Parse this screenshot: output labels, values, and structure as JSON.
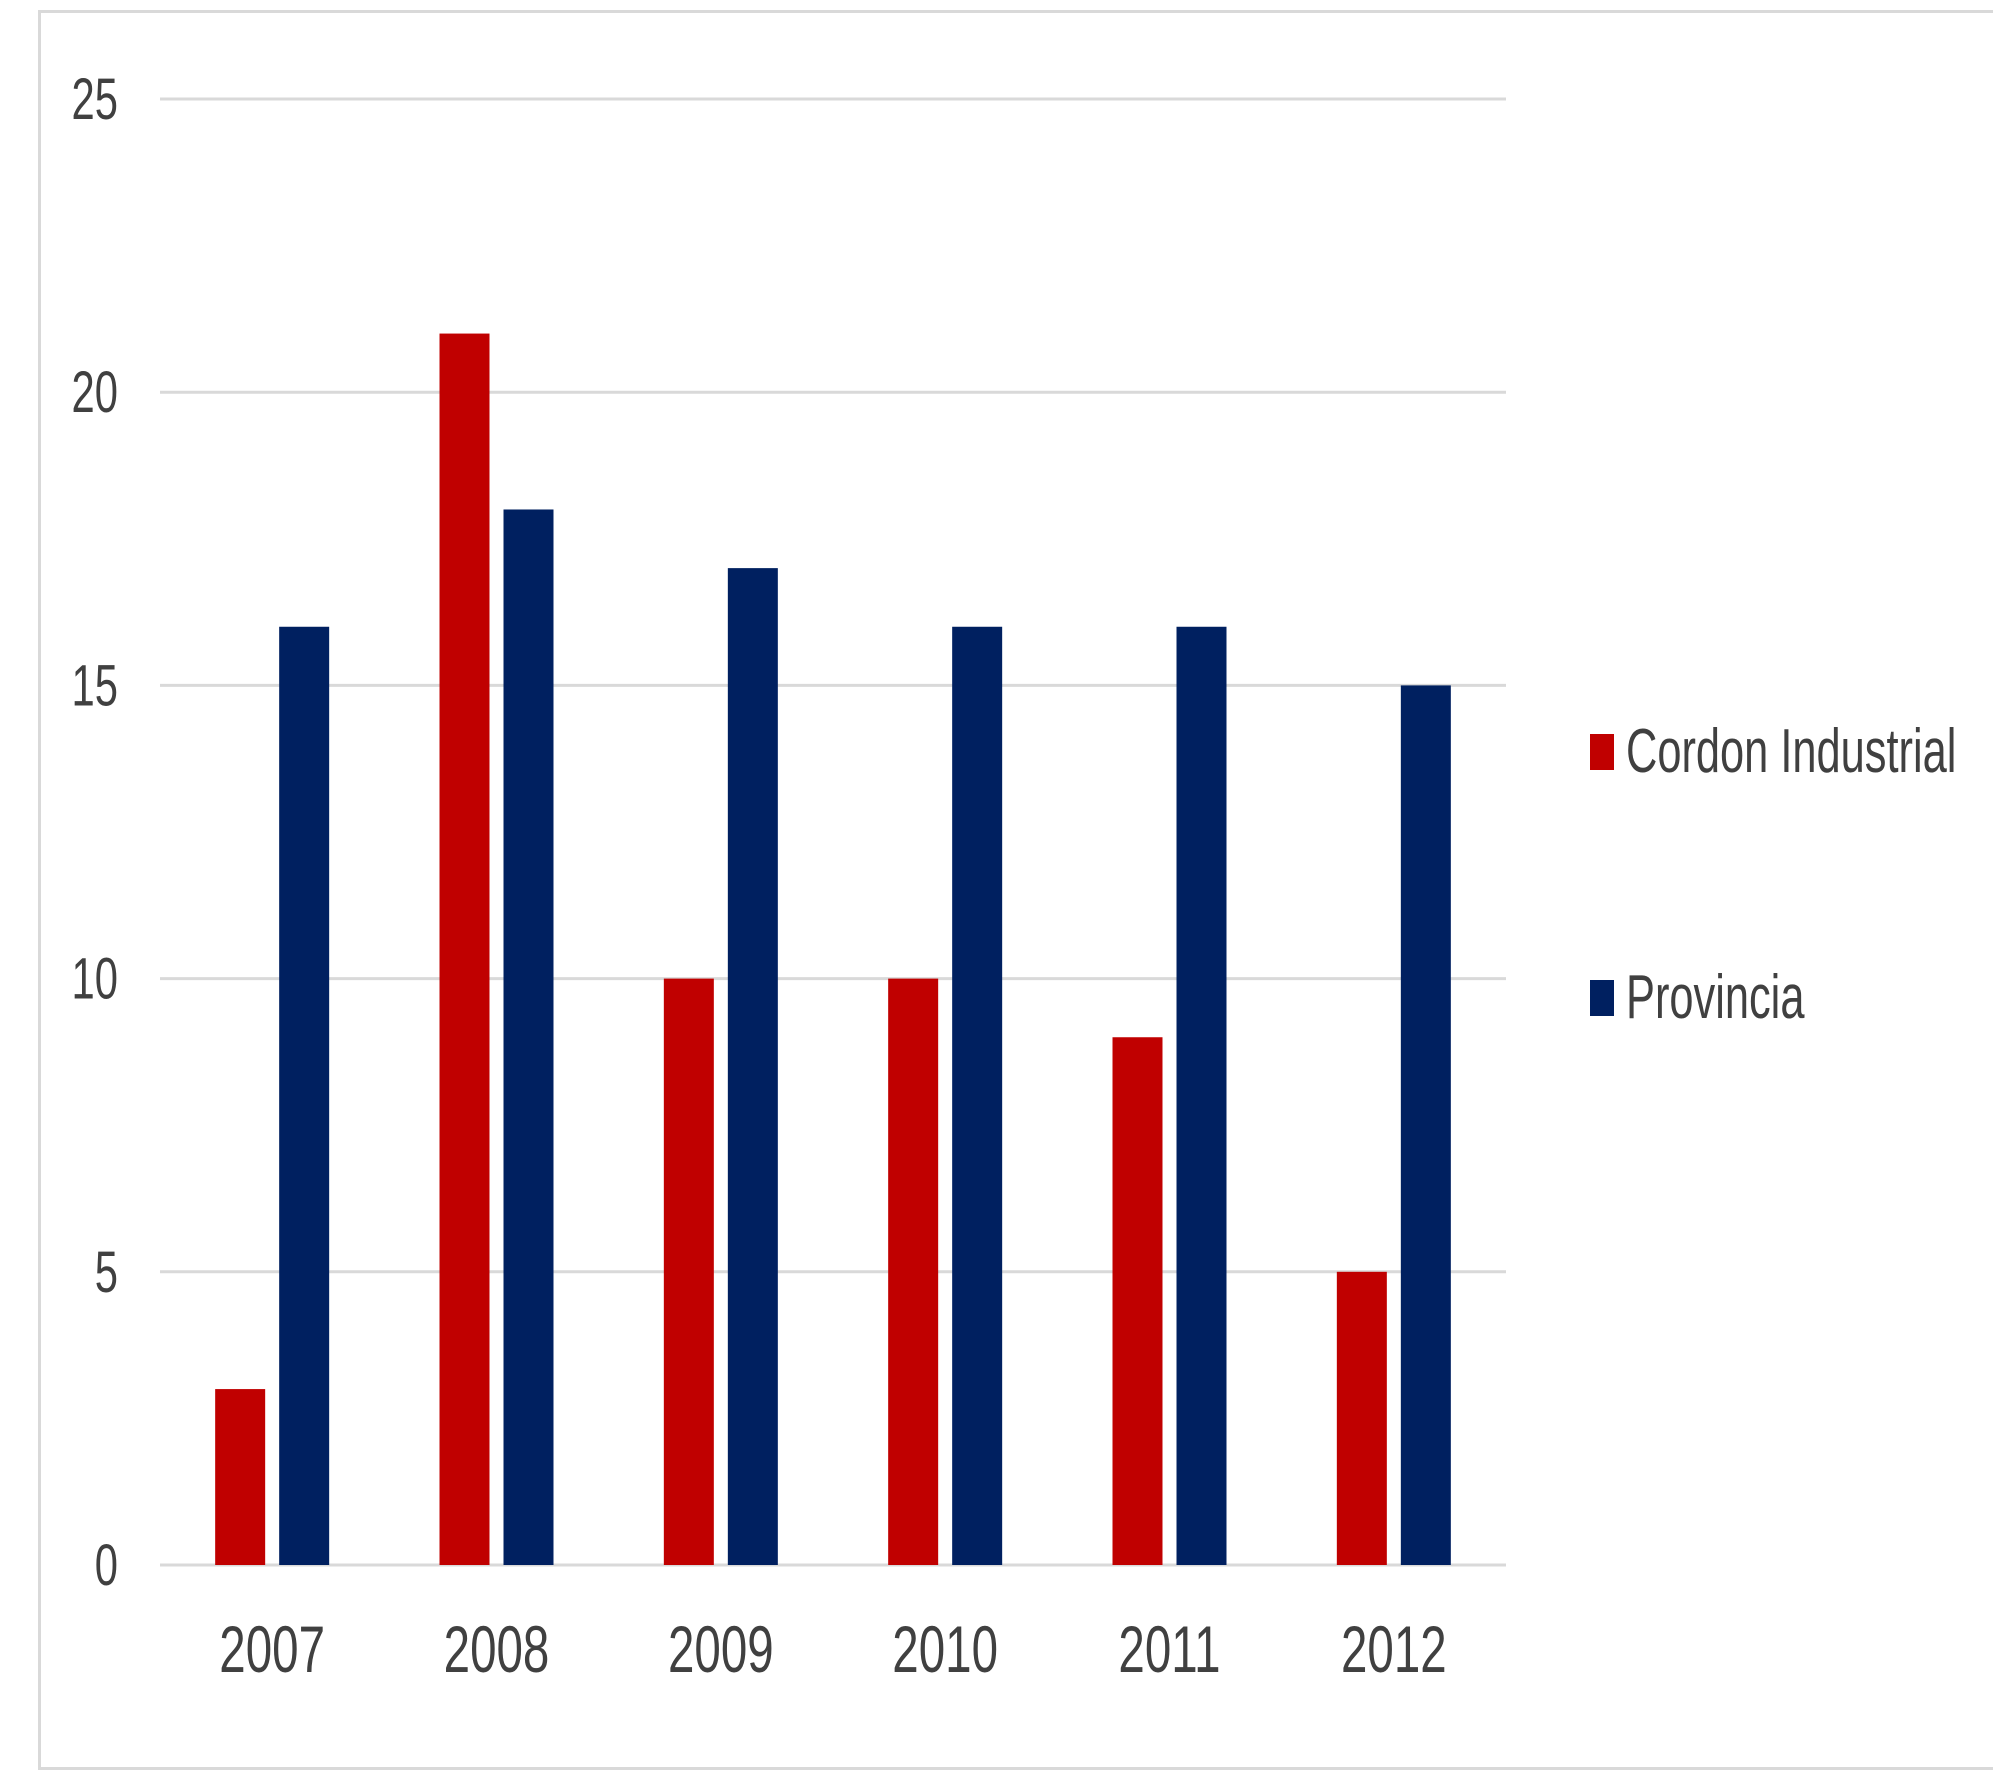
{
  "chart_data": {
    "type": "bar",
    "title": "",
    "xlabel": "",
    "ylabel": "",
    "categories": [
      "2007",
      "2008",
      "2009",
      "2010",
      "2011",
      "2012"
    ],
    "series": [
      {
        "name": "Cordon Industrial",
        "color": "#c00000",
        "values": [
          3,
          21,
          10,
          10,
          9,
          5
        ]
      },
      {
        "name": "Provincia",
        "color": "#002060",
        "values": [
          16,
          18,
          17,
          16,
          16,
          15
        ]
      }
    ],
    "ylim": [
      0,
      25
    ],
    "yticks": [
      "0",
      "5",
      "10",
      "15",
      "20",
      "25"
    ],
    "grid": true,
    "gridline_color": "#d9d9d9",
    "legend_position": "right"
  }
}
